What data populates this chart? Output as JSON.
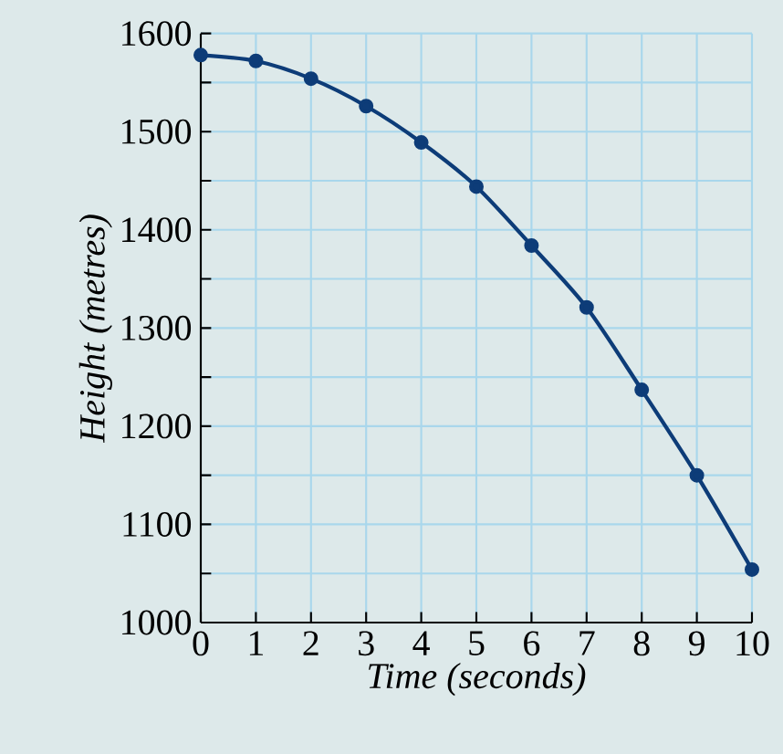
{
  "chart_data": {
    "type": "line",
    "xlabel": "Time (seconds)",
    "ylabel": "Height (metres)",
    "x": [
      0,
      1,
      2,
      3,
      4,
      5,
      6,
      7,
      8,
      9,
      10
    ],
    "series": [
      {
        "color": "#0d3c78",
        "values": [
          1578,
          1572,
          1554,
          1526,
          1489,
          1444,
          1384,
          1321,
          1237,
          1150,
          1054
        ]
      }
    ],
    "xlim": [
      0,
      10
    ],
    "ylim": [
      1000,
      1600
    ],
    "xticks": [
      0,
      1,
      2,
      3,
      4,
      5,
      6,
      7,
      8,
      9,
      10
    ],
    "yticks": [
      1000,
      {
        "value": 1050,
        "label": null
      },
      1100,
      {
        "value": 1150,
        "label": null
      },
      1200,
      {
        "value": 1250,
        "label": null
      },
      1300,
      {
        "value": 1350,
        "label": null
      },
      1400,
      {
        "value": 1450,
        "label": null
      },
      1500,
      {
        "value": 1550,
        "label": null
      },
      1600
    ],
    "grid": true,
    "marker": "circle",
    "line_style": "solid"
  }
}
